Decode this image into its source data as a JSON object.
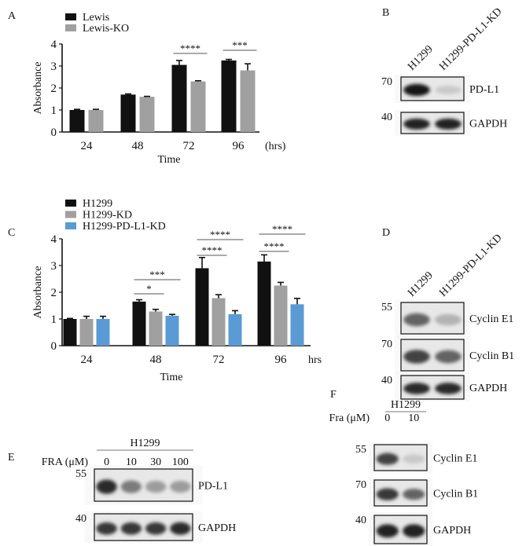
{
  "panels": {
    "A": {
      "letter": "A"
    },
    "B": {
      "letter": "B"
    },
    "C": {
      "letter": "C"
    },
    "D": {
      "letter": "D"
    },
    "E": {
      "letter": "E"
    },
    "F": {
      "letter": "F"
    }
  },
  "chart_data": [
    {
      "panel": "A",
      "type": "bar",
      "xlabel": "Time",
      "x_unit": "(hrs)",
      "ylabel": "Absorbance",
      "ylim": [
        0,
        4
      ],
      "yticks": [
        "0",
        "1",
        "2",
        "3",
        "4"
      ],
      "categories": [
        "24",
        "48",
        "72",
        "96"
      ],
      "legend": "top-left",
      "series": [
        {
          "name": "Lewis",
          "color": "#111111",
          "values": [
            1.0,
            1.7,
            3.05,
            3.25
          ],
          "errors": [
            0.03,
            0.03,
            0.2,
            0.05
          ]
        },
        {
          "name": "Lewis-KO",
          "color": "#a0a0a0",
          "values": [
            1.0,
            1.6,
            2.3,
            2.8
          ],
          "errors": [
            0.03,
            0.02,
            0.03,
            0.3
          ]
        }
      ],
      "significance": [
        {
          "category": "72",
          "from": 0,
          "to": 1,
          "label": "****"
        },
        {
          "category": "96",
          "from": 0,
          "to": 1,
          "label": "***"
        }
      ]
    },
    {
      "panel": "C",
      "type": "bar",
      "xlabel": "Time",
      "x_unit": "hrs",
      "ylabel": "Absorbance",
      "ylim": [
        0,
        4
      ],
      "yticks": [
        "0",
        "1",
        "2",
        "3",
        "4"
      ],
      "categories": [
        "24",
        "48",
        "72",
        "96"
      ],
      "legend": "top-left",
      "series": [
        {
          "name": "H1299",
          "color": "#111111",
          "values": [
            1.0,
            1.65,
            2.9,
            3.15
          ],
          "errors": [
            0.02,
            0.07,
            0.4,
            0.25
          ]
        },
        {
          "name": "H1299-KD",
          "color": "#a0a0a0",
          "values": [
            1.0,
            1.28,
            1.78,
            2.25
          ],
          "errors": [
            0.1,
            0.08,
            0.13,
            0.12
          ]
        },
        {
          "name": "H1299-PD-L1-KD",
          "color": "#5b9bd5",
          "values": [
            1.0,
            1.12,
            1.18,
            1.55
          ],
          "errors": [
            0.1,
            0.05,
            0.13,
            0.22
          ]
        }
      ],
      "significance": [
        {
          "category": "48",
          "from": 0,
          "to": 1,
          "label": "*"
        },
        {
          "category": "48",
          "from": 0,
          "to": 2,
          "label": "***"
        },
        {
          "category": "72",
          "from": 0,
          "to": 1,
          "label": "****"
        },
        {
          "category": "72",
          "from": 0,
          "to": 2,
          "label": "****"
        },
        {
          "category": "96",
          "from": 0,
          "to": 1,
          "label": "****"
        },
        {
          "category": "96",
          "from": 0,
          "to": 2,
          "label": "****"
        }
      ]
    }
  ],
  "blots": {
    "B": {
      "lanes": [
        "H1299",
        "H1299-PD-L1-KD"
      ],
      "rows": [
        {
          "protein": "PD-L1",
          "marker": "70",
          "intensity": [
            0.95,
            0.15
          ]
        },
        {
          "protein": "GAPDH",
          "marker": "40",
          "intensity": [
            0.9,
            0.9
          ]
        }
      ]
    },
    "D": {
      "lanes": [
        "H1299",
        "H1299-PD-L1-KD"
      ],
      "rows": [
        {
          "protein": "Cyclin E1",
          "marker": "55",
          "intensity": [
            0.6,
            0.25
          ]
        },
        {
          "protein": "Cyclin B1",
          "marker": "70",
          "intensity": [
            0.75,
            0.6
          ]
        },
        {
          "protein": "GAPDH",
          "marker": "40",
          "intensity": [
            0.85,
            0.85
          ]
        }
      ]
    },
    "E": {
      "group": "H1299",
      "treatment_label": "FRA (μM)",
      "lanes": [
        "0",
        "10",
        "30",
        "100"
      ],
      "rows": [
        {
          "protein": "PD-L1",
          "marker": "55",
          "intensity": [
            0.85,
            0.5,
            0.35,
            0.35
          ]
        },
        {
          "protein": "GAPDH",
          "marker": "40",
          "intensity": [
            0.8,
            0.8,
            0.8,
            0.85
          ]
        }
      ]
    },
    "F": {
      "group": "H1299",
      "treatment_label": "Fra (μM)",
      "lanes": [
        "0",
        "10"
      ],
      "rows": [
        {
          "protein": "Cyclin E1",
          "marker": "55",
          "intensity": [
            0.75,
            0.15
          ]
        },
        {
          "protein": "Cyclin B1",
          "marker": "70",
          "intensity": [
            0.8,
            0.6
          ]
        },
        {
          "protein": "GAPDH",
          "marker": "40",
          "intensity": [
            0.9,
            0.9
          ]
        }
      ]
    }
  }
}
